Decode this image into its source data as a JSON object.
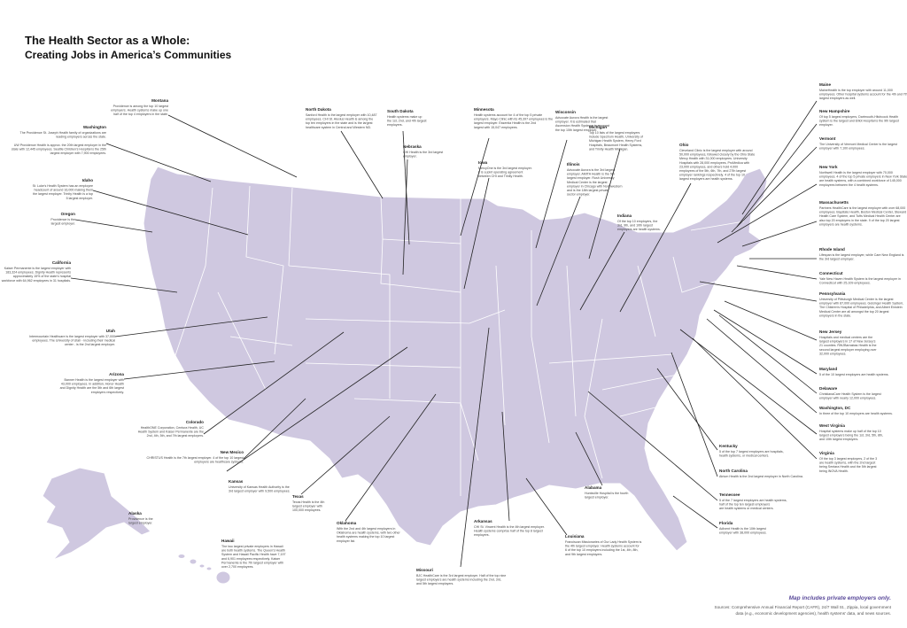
{
  "header": {
    "title": "The Health Sector as a Whole:",
    "subtitle": "Creating Jobs in America’s Communities"
  },
  "annotations": [
    {
      "state": "Montana",
      "lines": [
        "Providence is among the top 10 largest",
        "employers. Health systems make up one",
        "half of the top 4 employers in the state."
      ]
    },
    {
      "state": "Washington",
      "lines": [
        "The Providence St. Joseph Health family of organizations are",
        "leading employers across the state.",
        "",
        "UW Providence Health is approx. the 20th largest employer in the",
        "state with 12,445 employees. Seattle Children's Hospital is the 25th",
        "largest employer with 7,900 employees."
      ]
    },
    {
      "state": "Idaho",
      "lines": [
        "St. Luke's Health System has an employee",
        "headcount of around 16,000 making them",
        "the largest employer. Trinity Health is a top",
        "5 largest employer."
      ]
    },
    {
      "state": "Oregon",
      "lines": [
        "Providence is the",
        "largest employer."
      ]
    },
    {
      "state": "California",
      "lines": [
        "Kaiser Permanente is the largest employer with",
        "183,324 employees. Dignity Health represents",
        "approximately 15% of the state's hospital",
        "workforce with 64,962 employees in 31 hospitals."
      ]
    },
    {
      "state": "Utah",
      "lines": [
        "Intermountain Healthcare is the largest employer with 37,000",
        "employees. The University of Utah - including their medical",
        "center - is the 2nd largest employer."
      ]
    },
    {
      "state": "Arizona",
      "lines": [
        "Banner Health is the largest employer with",
        "43,000 employees. In addition, Honor Health",
        "and Dignity Health are the 5th and 6th largest",
        "employers respectively."
      ]
    },
    {
      "state": "Colorado",
      "lines": [
        "HealthONE Corporation, Centura Health, UC",
        "Health System and Kaiser Permanente are the",
        "2nd, 4th, 5th, and 7th largest employers."
      ]
    },
    {
      "state": "New Mexico",
      "lines": [
        "CHRISTUS Health is the 7th largest employer. 4 of the top 10 largest",
        "employers are healthcare systems."
      ]
    },
    {
      "state": "Kansas",
      "lines": [
        "University of Kansas Health Authority is the",
        "3rd largest employer with 9,500 employees."
      ]
    },
    {
      "state": "Texas",
      "lines": [
        "Texas Health is the 4th",
        "largest employer with",
        "100,000 employees."
      ]
    },
    {
      "state": "Oklahoma",
      "lines": [
        "With the 2nd and 4th largest employers in",
        "Oklahoma are health systems, with two other",
        "health systems making the top 10 largest",
        "employer list."
      ]
    },
    {
      "state": "Missouri",
      "lines": [
        "BJC HealthCare is the 3rd largest employer. Half of the top nine",
        "largest employers are health systems including the 2nd, 3rd,",
        "and 5th largest employers."
      ]
    },
    {
      "state": "Arkansas",
      "lines": [
        "CHI St. Vincent Health is the 4th largest employer.",
        "Health systems comprise half of the top 8 largest",
        "employers."
      ]
    },
    {
      "state": "Louisiana",
      "lines": [
        "Franciscan Missionaries of Our Lady Health System is",
        "the 4th largest employer. Health systems account for",
        "6 of the top 10 employers including the 1st, 4th, 8th,",
        "and 9th largest employers."
      ]
    },
    {
      "state": "Alabama",
      "lines": [
        "Huntsville Hospital is the fourth",
        "largest employer."
      ]
    },
    {
      "state": "Alaska",
      "lines": [
        "Providence is the",
        "largest employer."
      ]
    },
    {
      "state": "Hawaii",
      "lines": [
        "The two largest private employers in Hawaii",
        "are both health systems. The Queen's Health",
        "System and Hawaii Pacific Health have 7,197",
        "and 6,901 employees respectively. Kaiser",
        "Permanente is the 7th largest employer with",
        "over 2,700 employees."
      ]
    },
    {
      "state": "North Dakota",
      "lines": [
        "Sanford Health is the largest employer with 10,487",
        "employees. CHI St. Alexius Health is among the",
        "top ten employers in the state and is the largest",
        "healthcare system in Central and Western ND."
      ]
    },
    {
      "state": "South Dakota",
      "lines": [
        "Health systems make up",
        "the 1st, 2nd, and 4th largest",
        "employers."
      ]
    },
    {
      "state": "Nebraska",
      "lines": [
        "CHI Health is the 3rd largest",
        "employer."
      ]
    },
    {
      "state": "Minnesota",
      "lines": [
        "Health systems account for 4 of the top 5 private",
        "employers. Mayo Clinic with its 45,397 employees is the",
        "largest employer. Essentia Health is the 2nd",
        "largest with 15,047 employees."
      ]
    },
    {
      "state": "Iowa",
      "lines": [
        "MercyOne is the 3rd largest employer.",
        "It is a joint operating agreement",
        "between CHI and Trinity Health."
      ]
    },
    {
      "state": "Wisconsin",
      "lines": [
        "Advocate Aurora Health is the largest",
        "employer. It is estimated that",
        "Ascension Health Systems is amongst",
        "the top 10th largest employer."
      ]
    },
    {
      "state": "Illinois",
      "lines": [
        "Advocate Aurora is the 3rd largest",
        "employer. AMITA Health is the 5th",
        "largest employer. Rush University",
        "Medical Center is the largest",
        "employer in Chicago with Northwestern",
        "and is the 18th largest private",
        "sector employer."
      ]
    },
    {
      "state": "Michigan",
      "lines": [
        "Top 10 lists of the largest employers",
        "include Spectrum Health, University of",
        "Michigan Health System, Henry Ford",
        "Hospitals, Beaumont Health Systems,",
        "and Trinity Health Michigan."
      ]
    },
    {
      "state": "Indiana",
      "lines": [
        "Of the top 10 employers, the",
        "3rd, 9th, and 10th largest",
        "employers are health systems."
      ]
    },
    {
      "state": "Ohio",
      "lines": [
        "Cleveland Clinic is the largest employer with around",
        "50,000 employees, followed closely by the Ohio State",
        "Mercy Health with 31,000 employees. University",
        "Hospitals with 28,000 employees, ProMedica with",
        "23,000 employees, and others hold 4,000",
        "employees of the 5th, 6th, 7th, and 27th largest",
        "employer rankings respectively. 4 of the top 10",
        "largest employers are health systems."
      ]
    },
    {
      "state": "Maine",
      "lines": [
        "MaineHealth is the top employer with around 11,000",
        "employees. Other hospital systems account for the 4th and 7th",
        "largest employers as well."
      ]
    },
    {
      "state": "New Hampshire",
      "lines": [
        "Of top 5 largest employers, Dartmouth-Hitchcock Health",
        "system is the largest and Elliot Hospital is the 9th largest",
        "employer."
      ]
    },
    {
      "state": "Vermont",
      "lines": [
        "The University of Vermont Medical Center is the largest",
        "employer with 7,100 employees."
      ]
    },
    {
      "state": "New York",
      "lines": [
        "Northwell Health is the largest employer with 70,000",
        "employees. 4 of the top 5 private employers in New York State",
        "are health systems, with a combined workforce of 145,000",
        "employees between the 4 health systems."
      ]
    },
    {
      "state": "Massachusetts",
      "lines": [
        "Partners HealthCare is the largest employer with over 68,000",
        "employees. Baystate Health, Boston Medical Center, Steward",
        "Health Care System, and Tufts Medical Health Center are",
        "also top 20 employers in the state. 9 of the top 20 largest",
        "employers are health systems."
      ]
    },
    {
      "state": "Rhode Island",
      "lines": [
        "Lifespan is the largest employer, while Care New England is",
        "the 3rd largest employer."
      ]
    },
    {
      "state": "Connecticut",
      "lines": [
        "Yale New Haven Health System is the largest employer in",
        "Connecticut with 25,109 employees."
      ]
    },
    {
      "state": "Pennsylvania",
      "lines": [
        "University of Pittsburgh Medical Center is the largest",
        "employer with 87,000 employees. Geisinger Health System,",
        "The Children's Hospital of Philadelphia, and Albert Einstein",
        "Medical Center are all amongst the top 20 largest",
        "employers in the state."
      ]
    },
    {
      "state": "New Jersey",
      "lines": [
        "Hospitals and medical centers are the",
        "largest employers in 17 of New Jersey's",
        "21 counties. RWJBarnabas Health is the",
        "second largest employer employing over",
        "32,000 employees."
      ]
    },
    {
      "state": "Maryland",
      "lines": [
        "5 of the 10 largest employers are health systems."
      ]
    },
    {
      "state": "Delaware",
      "lines": [
        "ChristianaCare Health System is the largest",
        "employer with nearly 12,000 employees."
      ]
    },
    {
      "state": "Washington, DC",
      "lines": [
        "In three of the top 10 employers are health systems."
      ]
    },
    {
      "state": "West Virginia",
      "lines": [
        "Hospital systems make up half of the top 10",
        "largest employers being the 1st, 3rd, 5th, 8th,",
        "and 10th largest employers."
      ]
    },
    {
      "state": "Virginia",
      "lines": [
        "Of the top 3 largest employers, 2 of the 3",
        "are health systems, with the 2nd largest",
        "being Sentara Health and the 5th largest",
        "being INOVA Health."
      ]
    },
    {
      "state": "Kentucky",
      "lines": [
        "5 of the top 7 largest employers are hospitals,",
        "health systems, or medical centers."
      ]
    },
    {
      "state": "North Carolina",
      "lines": [
        "Atrium Health is the 2nd largest employer in North Carolina."
      ]
    },
    {
      "state": "Tennessee",
      "lines": [
        "5 of the 7 largest employers are health systems,",
        "half of the top ten largest employers",
        "are health systems or medical centers."
      ]
    },
    {
      "state": "Florida",
      "lines": [
        "Adlvent Health is the 10th largest",
        "employer with 38,000 employees."
      ]
    }
  ],
  "footer": {
    "note": "Map includes private employers only.",
    "sources": [
      "Sources: Comprehensive Annual Financial Report (CAFR), 24/7 Wall St., Zippia, local government",
      "data (e.g., economic development agencies), health systems' data, and news sources."
    ]
  }
}
